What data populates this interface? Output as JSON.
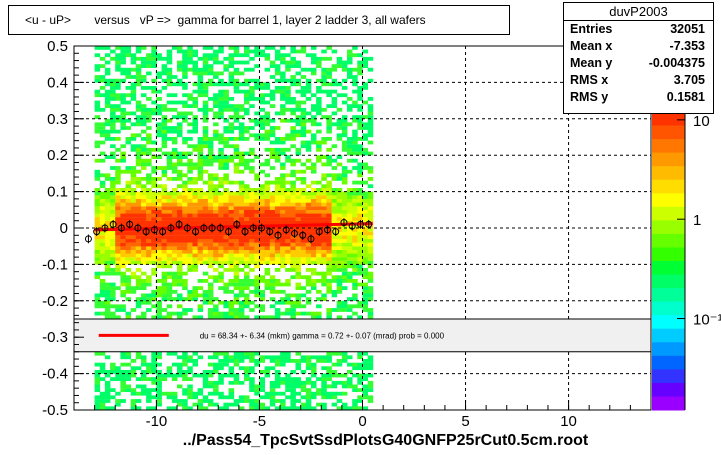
{
  "title": "<u - uP>       versus   vP =>  gamma for barrel 1, layer 2 ladder 3, all wafers",
  "stats": {
    "name": "duvP2003",
    "rows": [
      {
        "key": "Entries",
        "value": "32051"
      },
      {
        "key": "Mean x",
        "value": "-7.353"
      },
      {
        "key": "Mean y",
        "value": "-0.004375"
      },
      {
        "key": "RMS x",
        "value": "3.705"
      },
      {
        "key": "RMS y",
        "value": "0.1581"
      }
    ]
  },
  "footer": "../Pass54_TpcSvtSsdPlotsG40GNFP25rCut0.5cm.root",
  "legend_text": "du =    68.34 +-  6.34 (mkm) gamma =    0.72 +-  0.07 (mrad) prob = 0.000",
  "colors": {
    "fit": "#ff0000",
    "frame": "#000000"
  },
  "chart_data": {
    "type": "heatmap",
    "xlim": [
      -14,
      14
    ],
    "ylim": [
      -0.5,
      0.5
    ],
    "xticks": [
      -10,
      -5,
      0,
      5,
      10
    ],
    "yticks": [
      -0.5,
      -0.4,
      -0.3,
      -0.2,
      -0.1,
      0,
      0.1,
      0.2,
      0.3,
      0.4,
      0.5
    ],
    "xtick_labels": [
      "-10",
      "-5",
      "0",
      "5",
      "10"
    ],
    "ytick_labels": [
      "-0.5",
      "-0.4",
      "-0.3",
      "-0.2",
      "-0.1",
      "0",
      "0.1",
      "0.2",
      "0.3",
      "0.4",
      "0.5"
    ],
    "grid": true,
    "data_x_range": [
      -13,
      0.5
    ],
    "color_scale": {
      "type": "log",
      "labels": [
        "10",
        "1",
        "10⁻¹"
      ],
      "values": [
        10,
        1,
        0.1
      ]
    },
    "profile": {
      "x": [
        -13.3,
        -12.9,
        -12.5,
        -12.1,
        -11.7,
        -11.3,
        -10.9,
        -10.5,
        -10.1,
        -9.7,
        -9.3,
        -8.9,
        -8.5,
        -8.1,
        -7.7,
        -7.3,
        -6.9,
        -6.5,
        -6.1,
        -5.7,
        -5.3,
        -4.9,
        -4.5,
        -4.1,
        -3.7,
        -3.3,
        -2.9,
        -2.5,
        -2.1,
        -1.7,
        -1.3,
        -0.9,
        -0.5,
        -0.1,
        0.3
      ],
      "y": [
        -0.03,
        -0.01,
        0.0,
        0.01,
        0.0,
        0.01,
        0.0,
        -0.01,
        -0.005,
        -0.01,
        0.0,
        0.01,
        0.0,
        -0.01,
        0.0,
        0.0,
        0.0,
        -0.01,
        0.01,
        -0.01,
        0.0,
        0.0,
        -0.01,
        -0.02,
        -0.005,
        -0.015,
        -0.02,
        -0.03,
        -0.01,
        -0.005,
        -0.01,
        0.015,
        0.005,
        0.01,
        0.01
      ]
    },
    "fit_line": {
      "x": [
        -13,
        0.5
      ],
      "y": [
        -0.005,
        0.012
      ]
    }
  }
}
